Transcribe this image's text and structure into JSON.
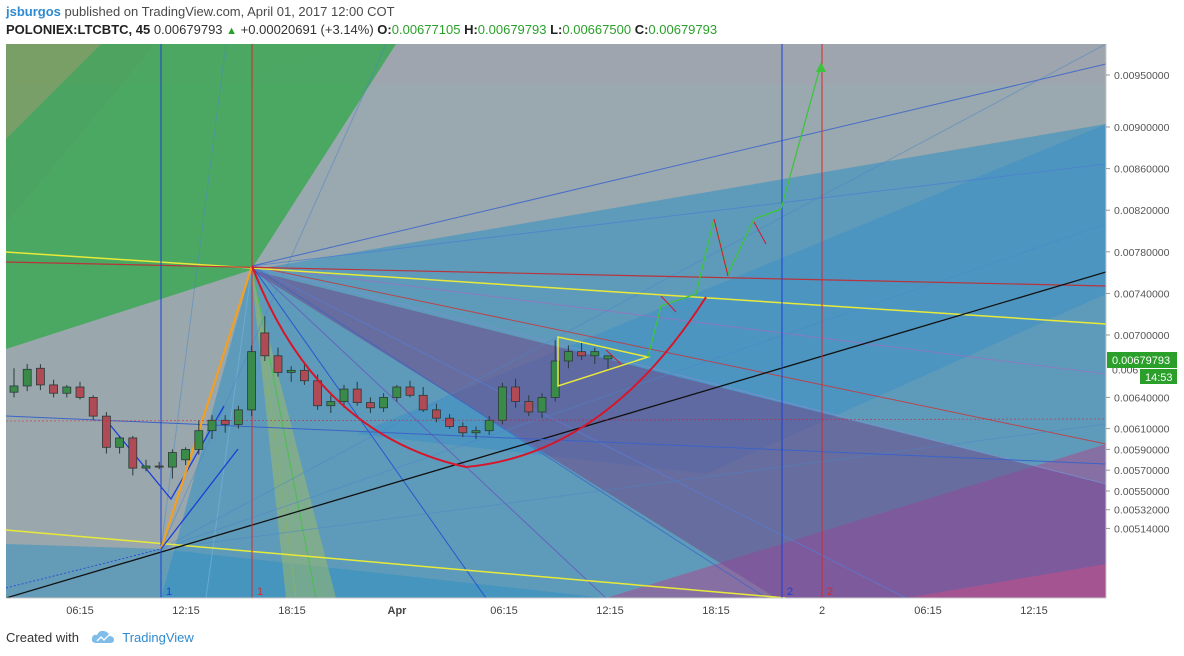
{
  "header": {
    "user": "jsburgos",
    "published": "published on TradingView.com, April 01, 2017 12:00 COT",
    "symbol": "POLONIEX:LTCBTC, 45",
    "last": "0.00679793",
    "change": "+0.00020691 (+3.14%)",
    "o_label": "O:",
    "o_value": "0.00677105",
    "h_label": "H:",
    "h_value": "0.00679793",
    "l_label": "L:",
    "l_value": "0.00667500",
    "c_label": "C:",
    "c_value": "0.00679793"
  },
  "footer": {
    "created": "Created with",
    "brand": "TradingView"
  },
  "chart_data": {
    "type": "candlestick",
    "title": "",
    "x_ticks": [
      "06:15",
      "12:15",
      "18:15",
      "Apr",
      "06:15",
      "12:15",
      "18:15",
      "2",
      "06:15",
      "12:15"
    ],
    "y_ticks": [
      "0.00950000",
      "0.00900000",
      "0.00860000",
      "0.00820000",
      "0.00780000",
      "0.00740000",
      "0.00700000",
      "0.00679793",
      "0.00640000",
      "0.00610000",
      "0.00590000",
      "0.00570000",
      "0.00550000",
      "0.00532000",
      "0.00514000"
    ],
    "ylim": [
      0.00514,
      0.0098
    ],
    "last_price_label": "0.00679793",
    "countdown_label": "14:53",
    "vertical_markers": [
      {
        "label": "1",
        "color": "#1a3fd6"
      },
      {
        "label": "1",
        "color": "#d62a2a"
      },
      {
        "label": "2",
        "color": "#1a3fd6"
      },
      {
        "label": "2",
        "color": "#d62a2a"
      }
    ],
    "candles": [
      {
        "o": 0.00645,
        "h": 0.00668,
        "l": 0.0064,
        "c": 0.00651
      },
      {
        "o": 0.00651,
        "h": 0.00672,
        "l": 0.00646,
        "c": 0.00667
      },
      {
        "o": 0.00668,
        "h": 0.00672,
        "l": 0.00647,
        "c": 0.00652
      },
      {
        "o": 0.00652,
        "h": 0.00657,
        "l": 0.0064,
        "c": 0.00644
      },
      {
        "o": 0.00644,
        "h": 0.00652,
        "l": 0.0064,
        "c": 0.0065
      },
      {
        "o": 0.0065,
        "h": 0.00655,
        "l": 0.00638,
        "c": 0.0064
      },
      {
        "o": 0.0064,
        "h": 0.00642,
        "l": 0.00618,
        "c": 0.00622
      },
      {
        "o": 0.00622,
        "h": 0.00626,
        "l": 0.00586,
        "c": 0.00592
      },
      {
        "o": 0.00592,
        "h": 0.00603,
        "l": 0.00586,
        "c": 0.00601
      },
      {
        "o": 0.00601,
        "h": 0.00603,
        "l": 0.00565,
        "c": 0.00572
      },
      {
        "o": 0.00572,
        "h": 0.0058,
        "l": 0.00569,
        "c": 0.00574
      },
      {
        "o": 0.00574,
        "h": 0.00578,
        "l": 0.00571,
        "c": 0.00573
      },
      {
        "o": 0.00573,
        "h": 0.0059,
        "l": 0.00562,
        "c": 0.00587
      },
      {
        "o": 0.0058,
        "h": 0.00592,
        "l": 0.00575,
        "c": 0.0059
      },
      {
        "o": 0.0059,
        "h": 0.00618,
        "l": 0.00585,
        "c": 0.00608
      },
      {
        "o": 0.00608,
        "h": 0.00623,
        "l": 0.006,
        "c": 0.00618
      },
      {
        "o": 0.00618,
        "h": 0.00623,
        "l": 0.00606,
        "c": 0.00614
      },
      {
        "o": 0.00614,
        "h": 0.00632,
        "l": 0.0061,
        "c": 0.00628
      },
      {
        "o": 0.00628,
        "h": 0.0069,
        "l": 0.00622,
        "c": 0.00684
      },
      {
        "o": 0.00702,
        "h": 0.00718,
        "l": 0.00675,
        "c": 0.0068
      },
      {
        "o": 0.0068,
        "h": 0.00688,
        "l": 0.0066,
        "c": 0.00664
      },
      {
        "o": 0.00664,
        "h": 0.0067,
        "l": 0.00655,
        "c": 0.00666
      },
      {
        "o": 0.00666,
        "h": 0.00672,
        "l": 0.00652,
        "c": 0.00656
      },
      {
        "o": 0.00656,
        "h": 0.00662,
        "l": 0.00628,
        "c": 0.00632
      },
      {
        "o": 0.00632,
        "h": 0.00642,
        "l": 0.00625,
        "c": 0.00636
      },
      {
        "o": 0.00636,
        "h": 0.00652,
        "l": 0.0063,
        "c": 0.00648
      },
      {
        "o": 0.00648,
        "h": 0.00655,
        "l": 0.00632,
        "c": 0.00635
      },
      {
        "o": 0.00635,
        "h": 0.0064,
        "l": 0.00625,
        "c": 0.0063
      },
      {
        "o": 0.0063,
        "h": 0.00644,
        "l": 0.00626,
        "c": 0.0064
      },
      {
        "o": 0.0064,
        "h": 0.00652,
        "l": 0.00636,
        "c": 0.0065
      },
      {
        "o": 0.0065,
        "h": 0.00656,
        "l": 0.0064,
        "c": 0.00642
      },
      {
        "o": 0.00642,
        "h": 0.0065,
        "l": 0.00626,
        "c": 0.00628
      },
      {
        "o": 0.00628,
        "h": 0.00634,
        "l": 0.00616,
        "c": 0.0062
      },
      {
        "o": 0.0062,
        "h": 0.00624,
        "l": 0.0061,
        "c": 0.00612
      },
      {
        "o": 0.00612,
        "h": 0.00616,
        "l": 0.00602,
        "c": 0.00606
      },
      {
        "o": 0.00606,
        "h": 0.00612,
        "l": 0.006,
        "c": 0.00608
      },
      {
        "o": 0.00608,
        "h": 0.00622,
        "l": 0.00604,
        "c": 0.00618
      },
      {
        "o": 0.00618,
        "h": 0.00654,
        "l": 0.00614,
        "c": 0.0065
      },
      {
        "o": 0.0065,
        "h": 0.00658,
        "l": 0.0063,
        "c": 0.00636
      },
      {
        "o": 0.00636,
        "h": 0.00642,
        "l": 0.00622,
        "c": 0.00626
      },
      {
        "o": 0.00626,
        "h": 0.00644,
        "l": 0.0062,
        "c": 0.0064
      },
      {
        "o": 0.0064,
        "h": 0.00695,
        "l": 0.00636,
        "c": 0.00675
      },
      {
        "o": 0.00675,
        "h": 0.0069,
        "l": 0.00668,
        "c": 0.00684
      },
      {
        "o": 0.00684,
        "h": 0.00694,
        "l": 0.00676,
        "c": 0.0068
      },
      {
        "o": 0.0068,
        "h": 0.00688,
        "l": 0.00672,
        "c": 0.00684
      },
      {
        "o": 0.00677,
        "h": 0.0068,
        "l": 0.00667,
        "c": 0.0068
      }
    ]
  }
}
